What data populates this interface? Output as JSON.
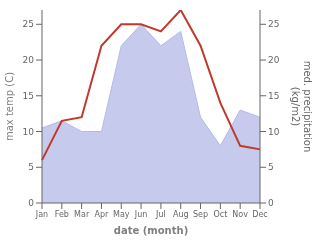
{
  "chart_data": {
    "type": "line",
    "xlabel": "date (month)",
    "ylabel": "max temp (C)",
    "y2label": "med. precipitation\n(kg/m2)",
    "categories": [
      "Jan",
      "Feb",
      "Mar",
      "Apr",
      "May",
      "Jun",
      "Jul",
      "Aug",
      "Sep",
      "Oct",
      "Nov",
      "Dec"
    ],
    "series": [
      {
        "type": "area",
        "axis": "y2",
        "color": "#b3b9e8",
        "values": [
          10.5,
          11.5,
          10,
          10,
          22,
          25,
          22,
          24,
          12,
          8,
          13,
          12
        ]
      },
      {
        "type": "line",
        "color": "#c0392b",
        "values": [
          6,
          11.5,
          12,
          22,
          25,
          25,
          24,
          27,
          22,
          14,
          8,
          7.5
        ]
      }
    ],
    "ylim": [
      0,
      27
    ],
    "yticks": [
      0,
      5,
      10,
      15,
      20,
      25
    ],
    "y2lim": [
      0,
      27
    ],
    "y2ticks": [
      0,
      5,
      10,
      15,
      20,
      25
    ]
  }
}
